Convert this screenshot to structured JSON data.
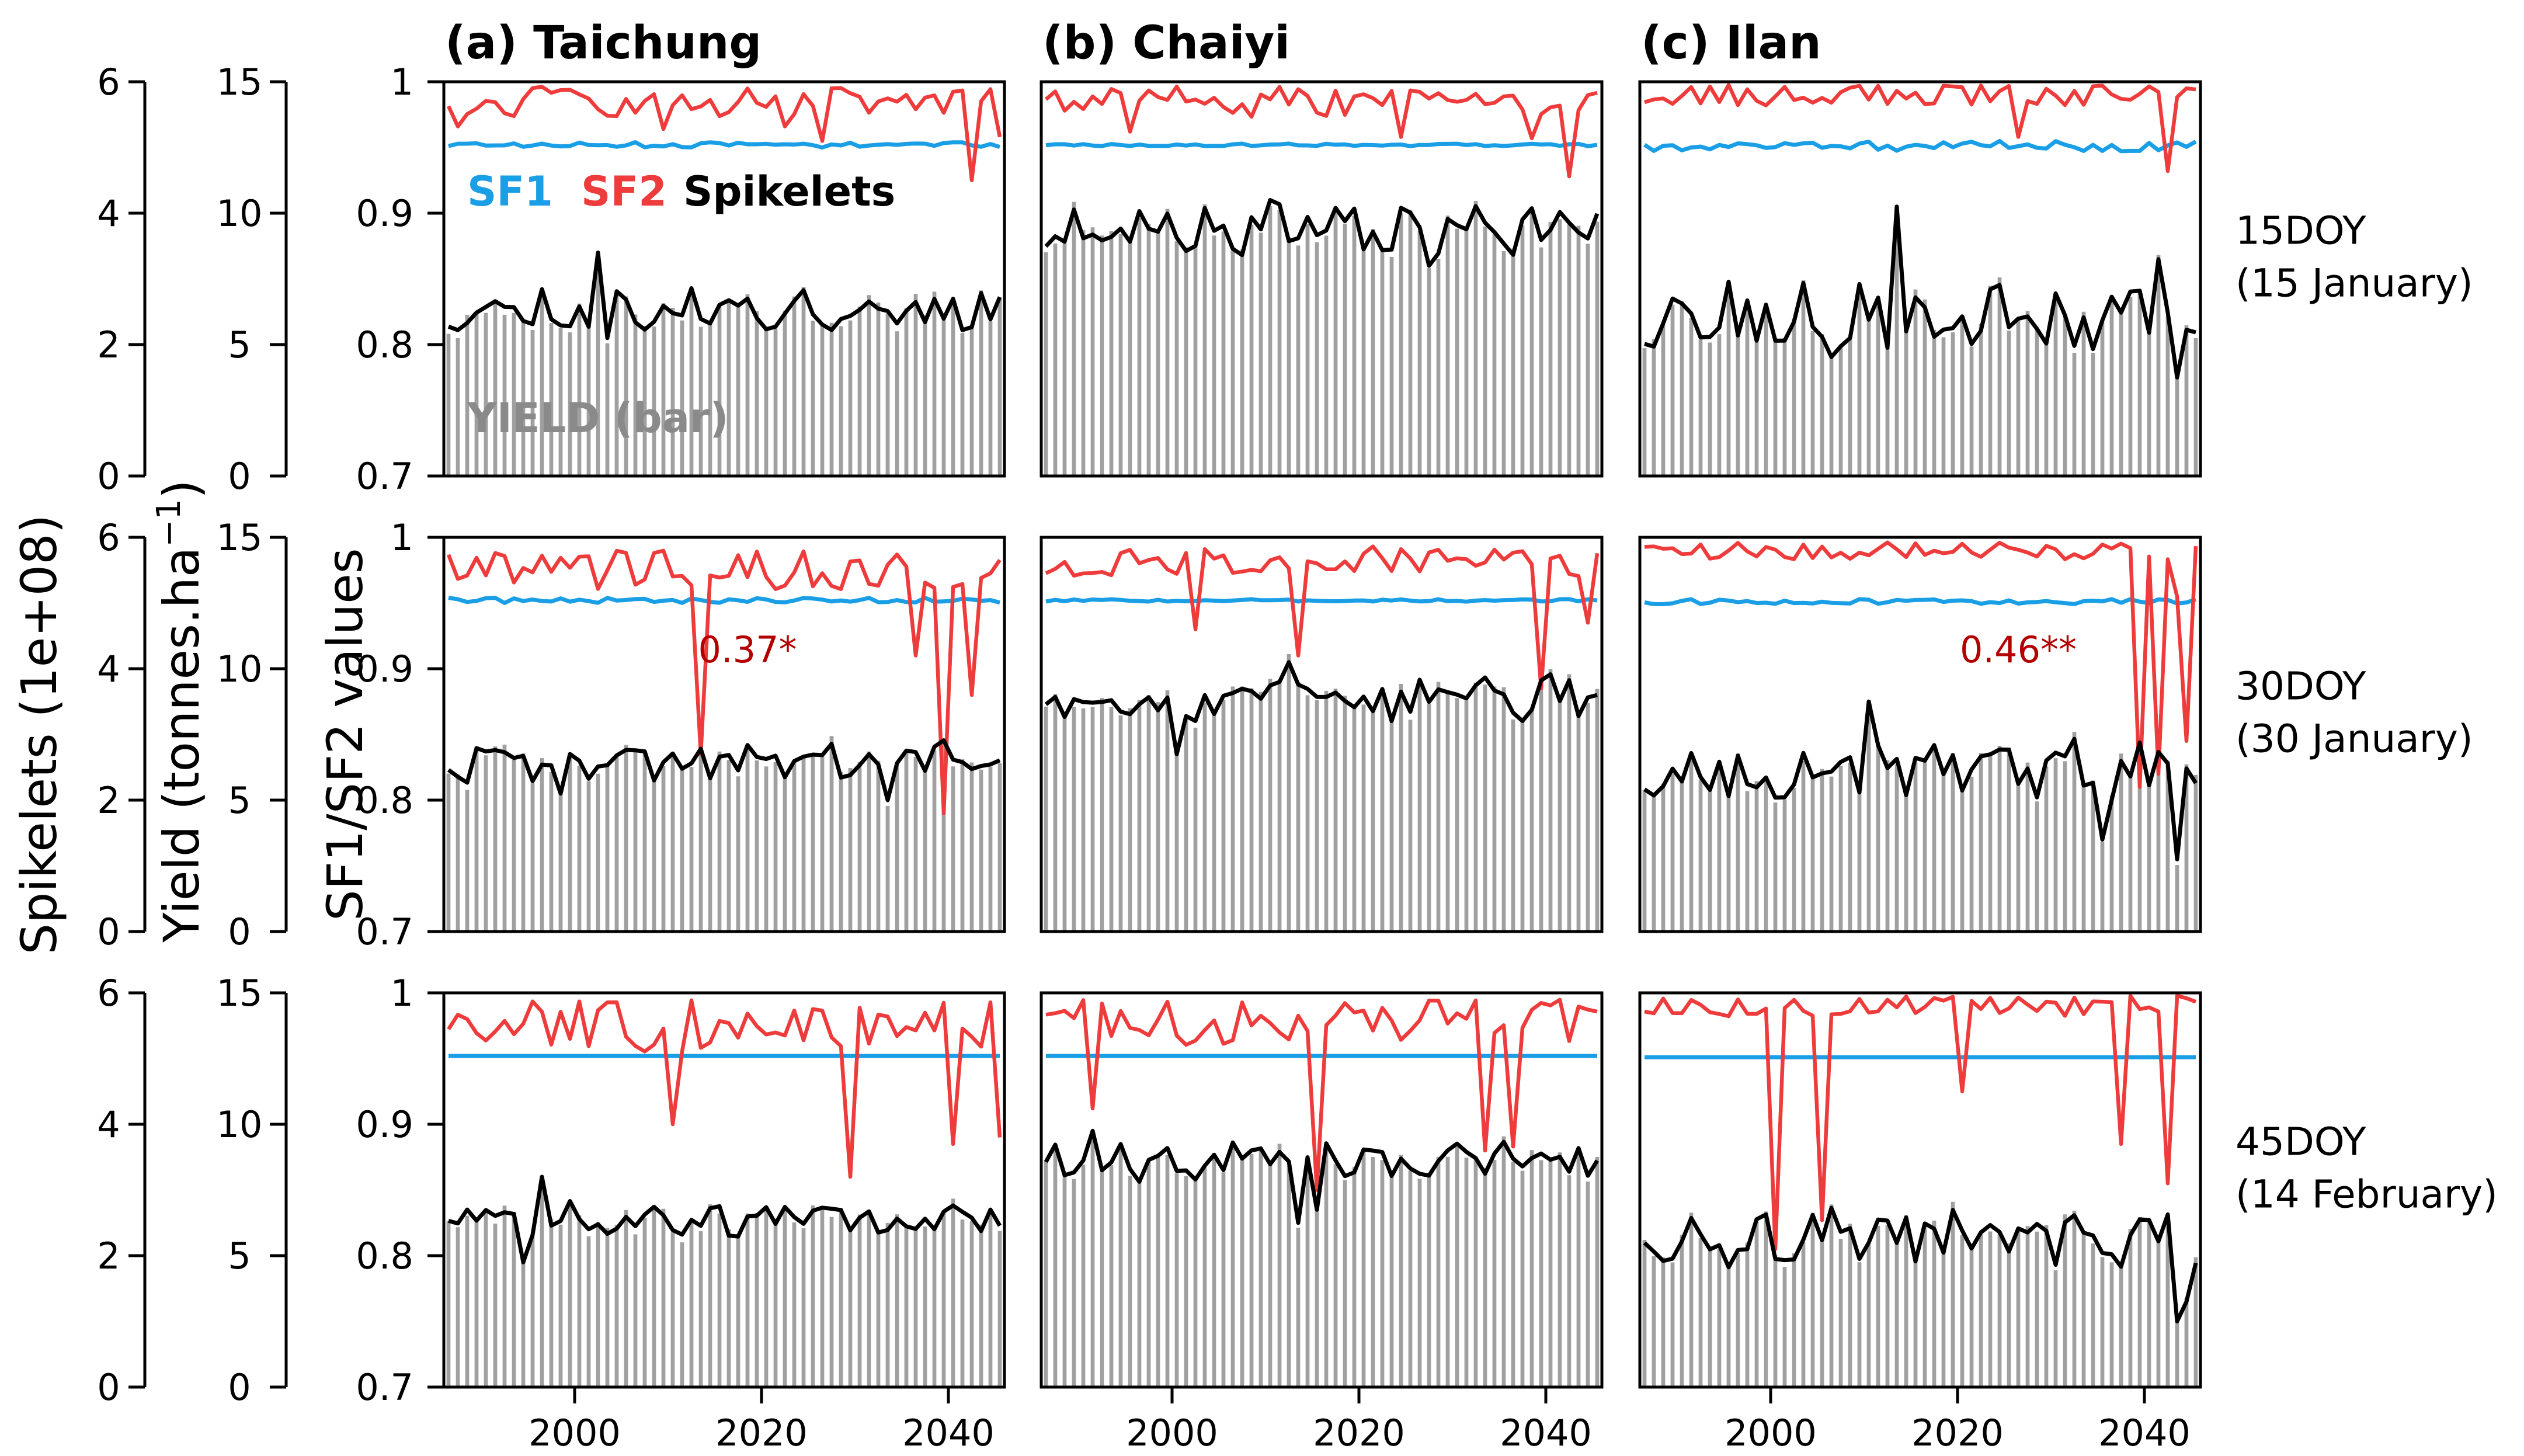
{
  "chart_data": {
    "type": "line",
    "description_axes": {
      "x_ticks": [
        2000,
        2020,
        2040
      ],
      "x_range": [
        1986,
        2045
      ],
      "spikelets_axis": {
        "title": "Spikelets (1e+08)",
        "ticks": [
          0,
          2,
          4,
          6
        ],
        "range": [
          0,
          6
        ]
      },
      "yield_axis": {
        "title_main": "Yield (tonnes.ha",
        "title_sup": "−1",
        "title_end": ")",
        "ticks": [
          0,
          5,
          10,
          15
        ],
        "range": [
          0,
          15
        ]
      },
      "sf_axis": {
        "title": "SF1/SF2 values",
        "ticks": [
          0.7,
          0.8,
          0.9,
          1
        ],
        "tick_labels": [
          "0.7",
          "0.8",
          "0.9",
          "1"
        ],
        "range": [
          0.7,
          1.0
        ]
      }
    },
    "columns": [
      {
        "title": "(a)  Taichung"
      },
      {
        "title": "(b)  Chaiyi"
      },
      {
        "title": "(c)  Ilan"
      }
    ],
    "rows": [
      {
        "label_line1": "15DOY",
        "label_line2": "(15 January)"
      },
      {
        "label_line1": "30DOY",
        "label_line2": "(30 January)"
      },
      {
        "label_line1": "45DOY",
        "label_line2": "(14 February)"
      }
    ],
    "legend": {
      "sf1": "SF1",
      "sf2": "SF2",
      "spikelets": "Spikelets",
      "yield": "YIELD (bar)",
      "sf1_color": "#1a9fe6",
      "sf2_color": "#ee3b3b",
      "spk_color": "#000000",
      "bar_color": "#a0a0a0"
    },
    "colors": {
      "sf1": "#1a9fe6",
      "sf2": "#ee3b3b",
      "spikelets": "#000000",
      "yield_bars": "#a0a0a0",
      "corr_text": "#b30000"
    },
    "panels": [
      {
        "row": 0,
        "col": 0,
        "spk_base": 2.55,
        "spk_amp": 0.3,
        "sf1_base": 0.952,
        "sf1_amp": 0.002,
        "sf2_base": 0.985,
        "sf2_amp": 0.012,
        "sf2_dips": [
          [
            1987,
            0.966
          ],
          [
            2009,
            0.964
          ],
          [
            2022,
            0.966
          ],
          [
            2026,
            0.955
          ],
          [
            2042,
            0.925
          ],
          [
            2045,
            0.958
          ]
        ],
        "spk_marks": [
          [
            2002,
            3.4
          ],
          [
            2003,
            2.1
          ],
          [
            2018,
            2.7
          ]
        ],
        "seed": 11,
        "corr": ""
      },
      {
        "row": 0,
        "col": 1,
        "spk_base": 3.75,
        "spk_amp": 0.3,
        "sf1_base": 0.952,
        "sf1_amp": 0.001,
        "sf2_base": 0.985,
        "sf2_amp": 0.012,
        "sf2_dips": [
          [
            1995,
            0.962
          ],
          [
            2024,
            0.958
          ],
          [
            2038,
            0.957
          ],
          [
            2042,
            0.928
          ]
        ],
        "spk_marks": [
          [
            2010,
            4.2
          ],
          [
            2027,
            3.2
          ]
        ],
        "seed": 23,
        "corr": ""
      },
      {
        "row": 0,
        "col": 2,
        "spk_base": 2.35,
        "spk_amp": 0.45,
        "sf1_base": 0.951,
        "sf1_amp": 0.004,
        "sf2_base": 0.99,
        "sf2_amp": 0.008,
        "sf2_dips": [
          [
            2026,
            0.958
          ],
          [
            2042,
            0.932
          ]
        ],
        "spk_marks": [
          [
            2013,
            4.1
          ],
          [
            2041,
            3.3
          ],
          [
            2043,
            1.5
          ]
        ],
        "seed": 37,
        "corr": ""
      },
      {
        "row": 1,
        "col": 0,
        "spk_base": 2.6,
        "spk_amp": 0.25,
        "sf1_base": 0.952,
        "sf1_amp": 0.002,
        "sf2_base": 0.975,
        "sf2_amp": 0.015,
        "sf2_dips": [
          [
            2013,
            0.835
          ],
          [
            2039,
            0.79
          ],
          [
            2036,
            0.91
          ],
          [
            2042,
            0.88
          ]
        ],
        "spk_marks": [
          [
            1998,
            2.1
          ],
          [
            2033,
            2.0
          ]
        ],
        "seed": 41,
        "corr": "0.37*",
        "corr_x": 2018,
        "corr_y": 0.905
      },
      {
        "row": 1,
        "col": 1,
        "spk_base": 3.55,
        "spk_amp": 0.28,
        "sf1_base": 0.952,
        "sf1_amp": 0.001,
        "sf2_base": 0.982,
        "sf2_amp": 0.012,
        "sf2_dips": [
          [
            2002,
            0.93
          ],
          [
            2013,
            0.91
          ],
          [
            2039,
            0.885
          ],
          [
            2044,
            0.935
          ]
        ],
        "spk_marks": [
          [
            2000,
            2.7
          ],
          [
            2012,
            4.1
          ]
        ],
        "seed": 53,
        "corr": ""
      },
      {
        "row": 1,
        "col": 2,
        "spk_base": 2.45,
        "spk_amp": 0.35,
        "sf1_base": 0.951,
        "sf1_amp": 0.002,
        "sf2_base": 0.99,
        "sf2_amp": 0.007,
        "sf2_dips": [
          [
            2039,
            0.81
          ],
          [
            2041,
            0.82
          ],
          [
            2043,
            0.955
          ],
          [
            2044,
            0.845
          ]
        ],
        "spk_marks": [
          [
            2010,
            3.5
          ],
          [
            2035,
            1.4
          ],
          [
            2043,
            1.1
          ]
        ],
        "seed": 67,
        "corr": "0.46**",
        "corr_x": 2026,
        "corr_y": 0.905
      },
      {
        "row": 2,
        "col": 0,
        "spk_base": 2.55,
        "spk_amp": 0.22,
        "sf1_base": 0.952,
        "sf1_amp": 0.0,
        "sf2_base": 0.975,
        "sf2_amp": 0.02,
        "sf2_dips": [
          [
            2010,
            0.9
          ],
          [
            2029,
            0.86
          ],
          [
            2040,
            0.885
          ],
          [
            2045,
            0.89
          ]
        ],
        "spk_marks": [
          [
            1994,
            1.9
          ],
          [
            1996,
            3.2
          ]
        ],
        "seed": 71,
        "corr": ""
      },
      {
        "row": 2,
        "col": 1,
        "spk_base": 3.45,
        "spk_amp": 0.3,
        "sf1_base": 0.952,
        "sf1_amp": 0.0,
        "sf2_base": 0.978,
        "sf2_amp": 0.018,
        "sf2_dips": [
          [
            1991,
            0.912
          ],
          [
            2015,
            0.85
          ],
          [
            2033,
            0.88
          ],
          [
            2036,
            0.883
          ]
        ],
        "spk_marks": [
          [
            1991,
            3.9
          ],
          [
            2013,
            2.5
          ],
          [
            2015,
            2.7
          ]
        ],
        "seed": 83,
        "corr": ""
      },
      {
        "row": 2,
        "col": 2,
        "spk_base": 2.3,
        "spk_amp": 0.35,
        "sf1_base": 0.951,
        "sf1_amp": 0.0,
        "sf2_base": 0.99,
        "sf2_amp": 0.008,
        "sf2_dips": [
          [
            2000,
            0.805
          ],
          [
            2005,
            0.827
          ],
          [
            2020,
            0.925
          ],
          [
            2037,
            0.885
          ],
          [
            2042,
            0.855
          ]
        ],
        "spk_marks": [
          [
            2000,
            1.95
          ],
          [
            2043,
            1.0
          ],
          [
            2044,
            1.3
          ]
        ],
        "seed": 97,
        "corr": ""
      }
    ]
  }
}
